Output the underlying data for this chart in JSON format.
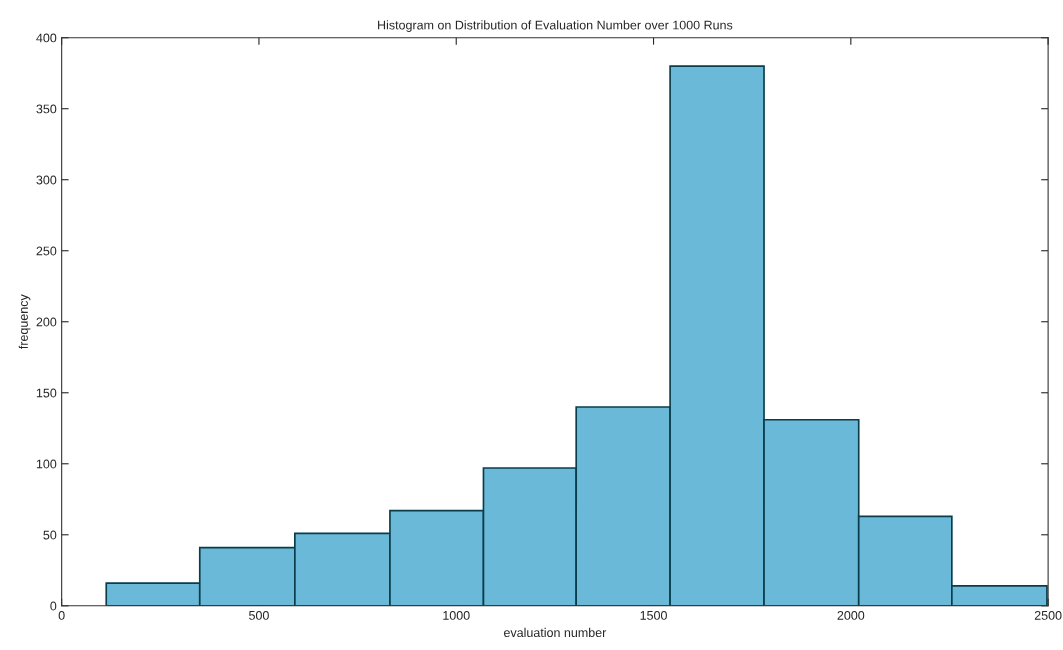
{
  "chart_data": {
    "type": "histogram",
    "title": "Histogram on Distribution of Evaluation Number over 1000 Runs",
    "xlabel": "evaluation number",
    "ylabel": "frequency",
    "bins": [
      113,
      350,
      591,
      832,
      1069,
      1304,
      1542,
      1780,
      2020,
      2256,
      2497
    ],
    "values": [
      16,
      41,
      51,
      67,
      97,
      140,
      380,
      131,
      63,
      14
    ],
    "color": "#6bb9d8",
    "xlim": [
      0,
      2500
    ],
    "xticks": [
      0,
      500,
      1000,
      1500,
      2000,
      2500
    ],
    "ylim": [
      0,
      400
    ],
    "yticks": [
      0,
      50,
      100,
      150,
      200,
      250,
      300,
      350,
      400
    ],
    "grid": false
  }
}
